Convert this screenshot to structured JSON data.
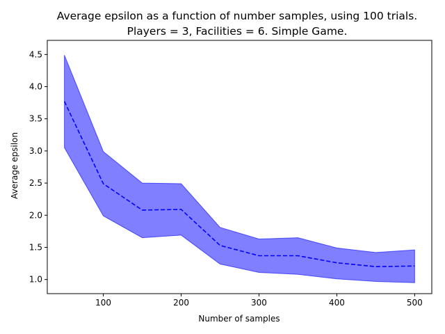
{
  "chart_data": {
    "type": "line",
    "title": [
      "Average epsilon as a function of number samples, using 100 trials.",
      "Players = 3, Facilities = 6. Simple Game."
    ],
    "xlabel": "Number of samples",
    "ylabel": "Average epsilon",
    "xlim": [
      28,
      522
    ],
    "ylim": [
      0.78,
      4.72
    ],
    "xticks": [
      100,
      200,
      300,
      400,
      500
    ],
    "yticks": [
      1.0,
      1.5,
      2.0,
      2.5,
      3.0,
      3.5,
      4.0,
      4.5
    ],
    "x": [
      50,
      100,
      150,
      200,
      250,
      300,
      350,
      400,
      450,
      500
    ],
    "series": [
      {
        "style": "dashed",
        "color": "#0000ff",
        "values": [
          3.77,
          2.49,
          2.08,
          2.09,
          1.53,
          1.37,
          1.37,
          1.26,
          1.2,
          1.21
        ]
      }
    ],
    "band": {
      "color": "#0000ff",
      "opacity": 0.5,
      "upper": [
        4.49,
        2.99,
        2.5,
        2.49,
        1.81,
        1.63,
        1.65,
        1.49,
        1.42,
        1.46
      ],
      "lower": [
        3.05,
        1.99,
        1.65,
        1.69,
        1.24,
        1.11,
        1.08,
        1.01,
        0.97,
        0.95
      ]
    },
    "grid": false,
    "legend": "none"
  }
}
